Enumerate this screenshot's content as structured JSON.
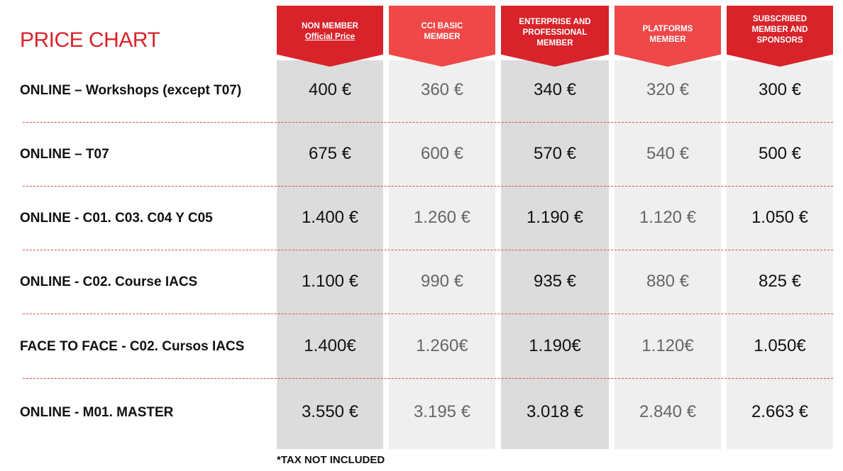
{
  "title": "PRICE CHART",
  "footnote": "*TAX NOT INCLUDED",
  "chart_data": {
    "type": "table",
    "title": "PRICE CHART",
    "columns": [
      {
        "line1": "NON MEMBER",
        "line2": "Official Price"
      },
      {
        "line1": "CCI BASIC",
        "line2": "MEMBER"
      },
      {
        "line1": "ENTERPRISE AND",
        "line2": "PROFESSIONAL",
        "line3": "MEMBER"
      },
      {
        "line1": "PLATFORMS",
        "line2": "MEMBER"
      },
      {
        "line1": "SUBSCRIBED",
        "line2": "MEMBER AND",
        "line3": "SPONSORS"
      }
    ],
    "rows": [
      {
        "label": "ONLINE – Workshops (except T07)",
        "values": [
          "400 €",
          "360 €",
          "340 €",
          "320 €",
          "300 €"
        ]
      },
      {
        "label": "ONLINE –  T07",
        "values": [
          "675 €",
          "600 €",
          "570 €",
          "540 €",
          "500 €"
        ]
      },
      {
        "label": "ONLINE - C01. C03. C04 Y C05",
        "values": [
          "1.400 €",
          "1.260 €",
          "1.190 €",
          "1.120 €",
          "1.050 €"
        ]
      },
      {
        "label": "ONLINE - C02. Course IACS",
        "values": [
          "1.100 €",
          "990 €",
          "935 €",
          "880 €",
          "825 €"
        ]
      },
      {
        "label": "FACE TO FACE - C02. Cursos IACS",
        "values": [
          "1.400€",
          "1.260€",
          "1.190€",
          "1.120€",
          "1.050€"
        ]
      },
      {
        "label": "ONLINE - M01. MASTER",
        "values": [
          "3.550 €",
          "3.195 €",
          "3.018 €",
          "2.840 €",
          "2.663 €"
        ]
      }
    ],
    "colors": {
      "brand_red": "#d8232a",
      "header_light_red": "#ef4848",
      "column_dark_grey": "#dcdcdc",
      "column_light_grey": "#efefef"
    }
  }
}
